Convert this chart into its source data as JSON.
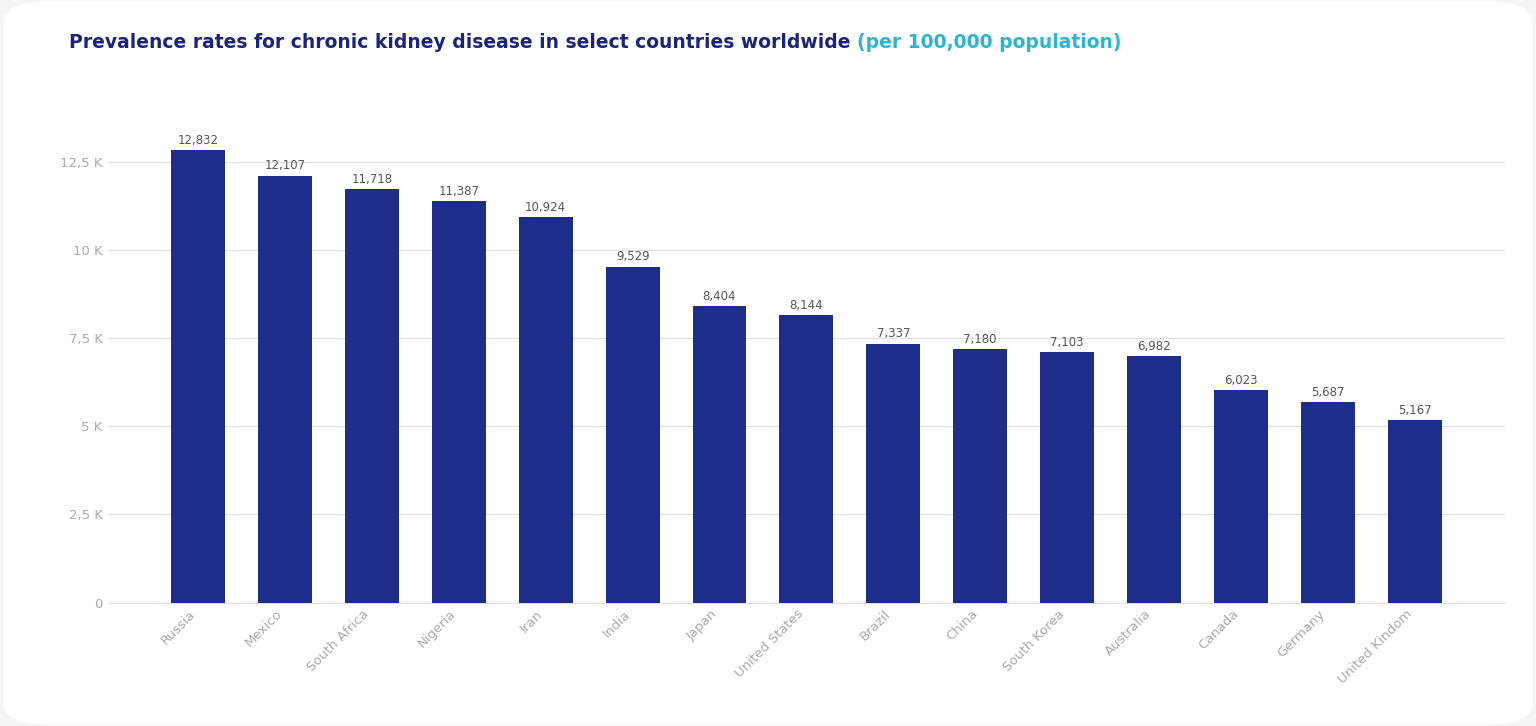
{
  "title_part1": "Prevalence rates for chronic kidney disease in select countries worldwide ",
  "title_part2": "(per 100,000 population)",
  "title_color1": "#1a237e",
  "title_color2": "#29b6d4",
  "categories": [
    "Russia",
    "Mexico",
    "South Africa",
    "Nigeria",
    "Iran",
    "India",
    "Japan",
    "United States",
    "Brazil",
    "China",
    "South Korea",
    "Australia",
    "Canada",
    "Germany",
    "United Kindom"
  ],
  "values": [
    12832,
    12107,
    11718,
    11387,
    10924,
    9529,
    8404,
    8144,
    7337,
    7180,
    7103,
    6982,
    6023,
    5687,
    5167
  ],
  "bar_color": "#1e2d8a",
  "value_color": "#555555",
  "ytick_labels": [
    "0",
    "2,5 K",
    "5 K",
    "7,5 K",
    "10 K",
    "12,5 K"
  ],
  "ytick_values": [
    0,
    2500,
    5000,
    7500,
    10000,
    12500
  ],
  "ylim": [
    0,
    14000
  ],
  "background_color": "#f5f5f5",
  "card_color": "#ffffff",
  "grid_color": "#e0e0e0",
  "title_fontsize": 13.5,
  "value_fontsize": 8.5,
  "tick_fontsize": 9.5,
  "xtick_color": "#aaaaaa",
  "ytick_color": "#aaaaaa",
  "bar_width": 0.62
}
